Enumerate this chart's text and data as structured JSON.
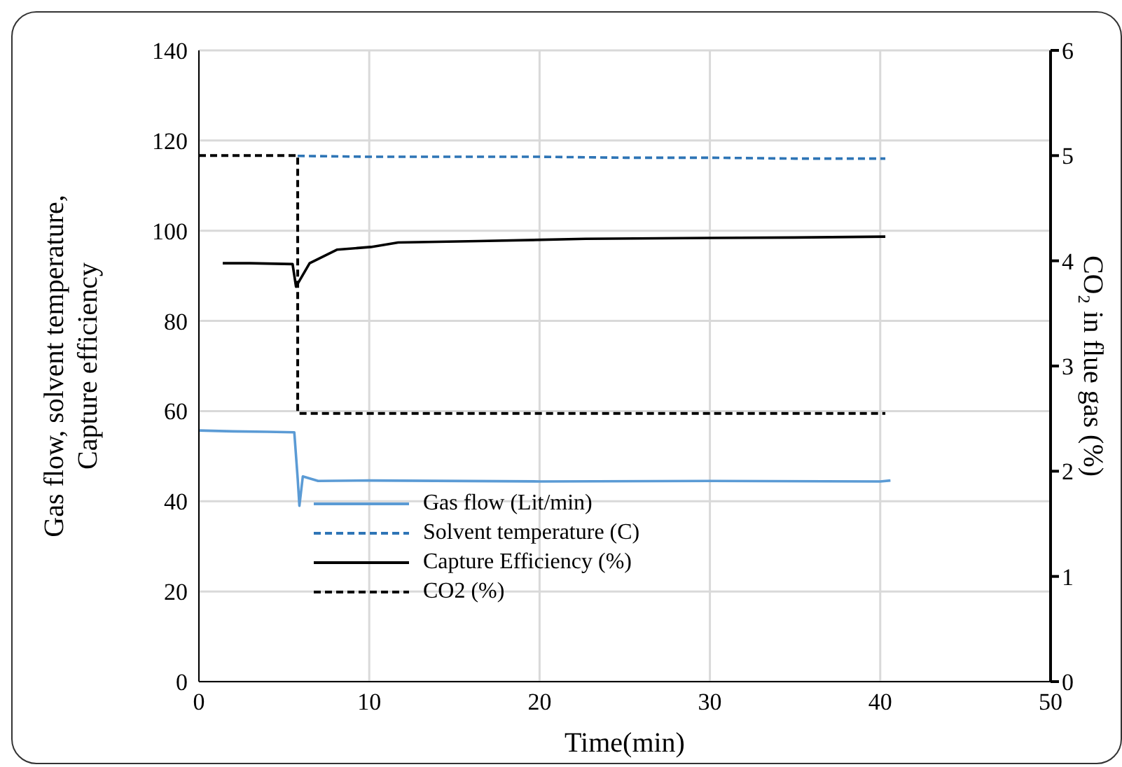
{
  "chart_data": {
    "type": "line",
    "xlabel": "Time(min)",
    "ylabel": "Gas flow, solvent temperature, Capture efficiency",
    "y2label": "CO₂ in flue gas (%)",
    "xlim": [
      0,
      50
    ],
    "xticks": [
      0,
      10,
      20,
      30,
      40,
      50
    ],
    "ylim": [
      0,
      140
    ],
    "yticks": [
      0,
      20,
      40,
      60,
      80,
      100,
      120,
      140
    ],
    "y2lim": [
      0,
      6
    ],
    "y2ticks": [
      0,
      1,
      2,
      3,
      4,
      5,
      6
    ],
    "grid": true,
    "legend": "bottom",
    "marker": "none",
    "series": [
      {
        "name": "Gas flow (Lit/min)",
        "color": "#5b9bd5",
        "line_style": "solid",
        "x": [
          0,
          2,
          4,
          5.6,
          5.8,
          5.9,
          6.1,
          7,
          10,
          20,
          30,
          40,
          40.6
        ],
        "values": [
          55.7,
          55.5,
          55.4,
          55.3,
          45,
          39,
          45.5,
          44.5,
          44.6,
          44.4,
          44.5,
          44.4,
          44.6
        ]
      },
      {
        "name": "Solvent temperature (C)",
        "color": "#2e75b6",
        "line_style": "dashed",
        "x": [
          5.8,
          10,
          20,
          25,
          30,
          35,
          40.3
        ],
        "values": [
          116.6,
          116.4,
          116.4,
          116.2,
          116.2,
          116,
          116
        ]
      },
      {
        "name": "Capture Efficiency (%)",
        "color": "#000000",
        "line_style": "solid",
        "x": [
          1.4,
          3,
          5.5,
          5.7,
          6.5,
          8.1,
          10.1,
          11.7,
          16.4,
          22.7,
          30,
          35,
          40.3
        ],
        "values": [
          92.8,
          92.8,
          92.6,
          87.6,
          92.8,
          95.8,
          96.4,
          97.4,
          97.7,
          98.2,
          98.4,
          98.5,
          98.7
        ]
      },
      {
        "name": "CO2 (%)",
        "color": "#000000",
        "line_style": "dashed",
        "axis": "y2",
        "x": [
          0,
          5.8,
          5.8,
          40.3
        ],
        "values": [
          5,
          5,
          2.55,
          2.55
        ]
      }
    ]
  }
}
